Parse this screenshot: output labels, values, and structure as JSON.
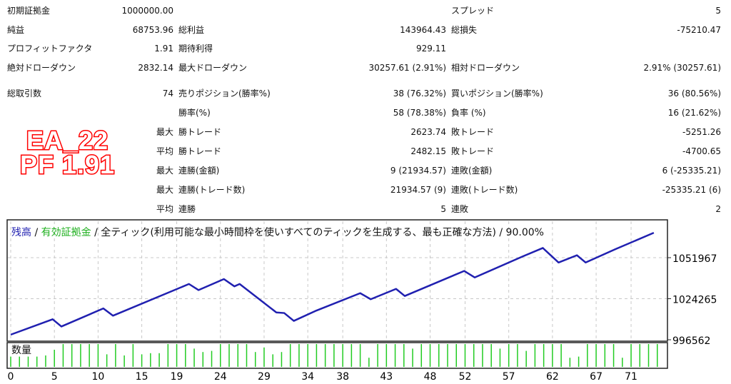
{
  "stats": [
    {
      "row": 0,
      "col": 0,
      "label": "初期証拠金",
      "value": "1000000.00"
    },
    {
      "row": 0,
      "col": 2,
      "label": "スプレッド",
      "value": "5"
    },
    {
      "row": 1,
      "col": 0,
      "label": "純益",
      "value": "68753.96"
    },
    {
      "row": 1,
      "col": 1,
      "label": "総利益",
      "value": "143964.43"
    },
    {
      "row": 1,
      "col": 2,
      "label": "総損失",
      "value": "-75210.47"
    },
    {
      "row": 2,
      "col": 0,
      "label": "プロフィットファクタ",
      "value": "1.91"
    },
    {
      "row": 2,
      "col": 1,
      "label": "期待利得",
      "value": "929.11"
    },
    {
      "row": 3,
      "col": 0,
      "label": "絶対ドローダウン",
      "value": "2832.14"
    },
    {
      "row": 3,
      "col": 1,
      "label": "最大ドローダウン",
      "value": "30257.61 (2.91%)"
    },
    {
      "row": 3,
      "col": 2,
      "label": "相対ドローダウン",
      "value": "2.91% (30257.61)"
    },
    {
      "row": 4,
      "col": 0,
      "label": "総取引数",
      "value": "74"
    },
    {
      "row": 4,
      "col": 1,
      "label": "売りポジション(勝率%)",
      "value": "38 (76.32%)"
    },
    {
      "row": 4,
      "col": 2,
      "label": "買いポジション(勝率%)",
      "value": "36 (80.56%)"
    },
    {
      "row": 5,
      "col": 1,
      "label": "勝率(%)",
      "value": "58 (78.38%)"
    },
    {
      "row": 5,
      "col": 2,
      "label": "負率 (%)",
      "value": "16 (21.62%)"
    },
    {
      "row": 6,
      "col": 0,
      "label": "最大",
      "value": "",
      "inner": true
    },
    {
      "row": 6,
      "col": 1,
      "label": "勝トレード",
      "value": "2623.74"
    },
    {
      "row": 6,
      "col": 2,
      "label": "敗トレード",
      "value": "-5251.26"
    },
    {
      "row": 7,
      "col": 0,
      "label": "平均",
      "value": "",
      "inner": true
    },
    {
      "row": 7,
      "col": 1,
      "label": "勝トレード",
      "value": "2482.15"
    },
    {
      "row": 7,
      "col": 2,
      "label": "敗トレード",
      "value": "-4700.65"
    },
    {
      "row": 8,
      "col": 0,
      "label": "最大",
      "value": "",
      "inner": true
    },
    {
      "row": 8,
      "col": 1,
      "label": "連勝(金額)",
      "value": "9 (21934.57)"
    },
    {
      "row": 8,
      "col": 2,
      "label": "連敗(金額)",
      "value": "6 (-25335.21)"
    },
    {
      "row": 9,
      "col": 0,
      "label": "最大",
      "value": "",
      "inner": true
    },
    {
      "row": 9,
      "col": 1,
      "label": "連勝(トレード数)",
      "value": "21934.57 (9)"
    },
    {
      "row": 9,
      "col": 2,
      "label": "連敗(トレード数)",
      "value": "-25335.21 (6)"
    },
    {
      "row": 10,
      "col": 0,
      "label": "平均",
      "value": "",
      "inner": true
    },
    {
      "row": 10,
      "col": 1,
      "label": "連勝",
      "value": "5"
    },
    {
      "row": 10,
      "col": 2,
      "label": "連敗",
      "value": "2"
    }
  ],
  "logo": {
    "line1": "EA_22",
    "line2": "PF 1.91"
  },
  "chart": {
    "legend_balance": "残高",
    "sep1": " / ",
    "legend_equity": "有効証拠金",
    "rest": " / 全ティック(利用可能な最小時間枠を使いすべてのティックを生成する、最も正確な方法) / 90.00%",
    "volume_label": "数量",
    "colors": {
      "balance": "#2020b0",
      "equity": "#20b020",
      "volume": "#22cc22",
      "grid": "#c8c8c8"
    }
  },
  "chart_data": {
    "type": "line",
    "x_ticks": [
      0,
      5,
      10,
      15,
      19,
      24,
      29,
      34,
      38,
      43,
      48,
      52,
      57,
      62,
      67,
      71
    ],
    "y_ticks": [
      996562,
      1024265,
      1051967
    ],
    "grid": true,
    "series": [
      {
        "name": "残高",
        "points": [
          [
            0,
            1000000
          ],
          [
            4.8,
            1010400
          ],
          [
            5.8,
            1005500
          ],
          [
            10.6,
            1017700
          ],
          [
            11.7,
            1012800
          ],
          [
            20.4,
            1034200
          ],
          [
            21.5,
            1030100
          ],
          [
            24.4,
            1037500
          ],
          [
            25.6,
            1032600
          ],
          [
            26.2,
            1034200
          ],
          [
            30.4,
            1015000
          ],
          [
            31.3,
            1014600
          ],
          [
            32.4,
            1009300
          ],
          [
            35,
            1016300
          ],
          [
            40,
            1028000
          ],
          [
            41.2,
            1023900
          ],
          [
            44.1,
            1030900
          ],
          [
            45.1,
            1026100
          ],
          [
            51.9,
            1043000
          ],
          [
            53.1,
            1038600
          ],
          [
            58.6,
            1052800
          ],
          [
            60.9,
            1058500
          ],
          [
            62.7,
            1048700
          ],
          [
            64.8,
            1053600
          ],
          [
            65.8,
            1048700
          ],
          [
            69.2,
            1057700
          ],
          [
            73.6,
            1068754
          ]
        ]
      }
    ],
    "volume": [
      0.45,
      0.45,
      0.45,
      0.45,
      0.5,
      0.75,
      1,
      1,
      1,
      1,
      1,
      0.55,
      1,
      0.5,
      1,
      0.55,
      0.6,
      0.6,
      1,
      1,
      1,
      0.8,
      0.65,
      0.7,
      1,
      1,
      1,
      1,
      0.65,
      0.85,
      0.55,
      0.65,
      1,
      1,
      1,
      1,
      1,
      1,
      1,
      1,
      1,
      0.4,
      1,
      1,
      1,
      1,
      0.8,
      1,
      1,
      1,
      1,
      1,
      1,
      1,
      1,
      1,
      0.8,
      1,
      1,
      0.7,
      1,
      1,
      1,
      1,
      0.4,
      0.45,
      1,
      1,
      1,
      1,
      0.4,
      1,
      1,
      1,
      1
    ]
  }
}
